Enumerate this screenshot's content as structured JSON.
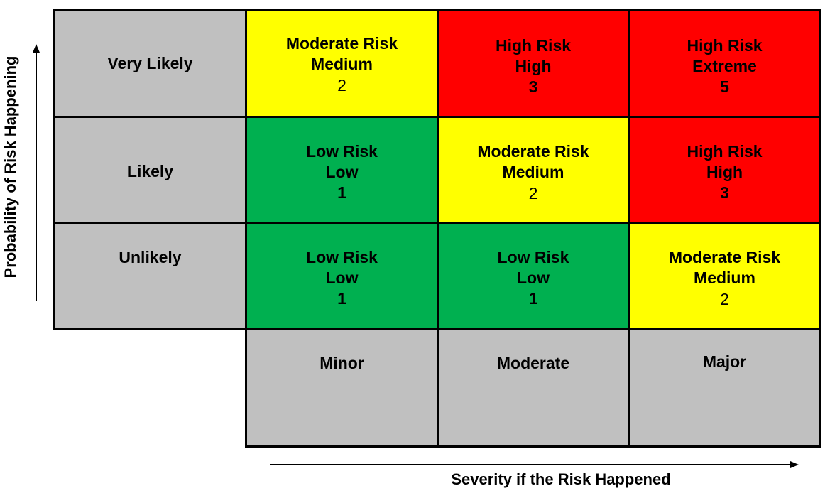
{
  "axes": {
    "y_label": "Probability of Risk Happening",
    "x_label": "Severity if the Risk Happened"
  },
  "rows": [
    {
      "label": "Very Likely"
    },
    {
      "label": "Likely"
    },
    {
      "label": "Unlikely"
    }
  ],
  "columns": [
    {
      "label": "Minor"
    },
    {
      "label": "Moderate"
    },
    {
      "label": "Major"
    }
  ],
  "matrix": [
    [
      {
        "line1": "Moderate Risk",
        "line2": "Medium",
        "score": "2",
        "color": "#ffff00"
      },
      {
        "line1": "High Risk",
        "line2": "High",
        "score": "3",
        "color": "#ff0000"
      },
      {
        "line1": "High Risk",
        "line2": "Extreme",
        "score": "5",
        "color": "#ff0000"
      }
    ],
    [
      {
        "line1": "Low Risk",
        "line2": "Low",
        "score": "1",
        "color": "#00b050"
      },
      {
        "line1": "Moderate Risk",
        "line2": "Medium",
        "score": "2",
        "color": "#ffff00"
      },
      {
        "line1": "High Risk",
        "line2": "High",
        "score": "3",
        "color": "#ff0000"
      }
    ],
    [
      {
        "line1": "Low Risk",
        "line2": "Low",
        "score": "1",
        "color": "#00b050"
      },
      {
        "line1": "Low Risk",
        "line2": "Low",
        "score": "1",
        "color": "#00b050"
      },
      {
        "line1": "Moderate Risk",
        "line2": "Medium",
        "score": "2",
        "color": "#ffff00"
      }
    ]
  ],
  "colors": {
    "low": "#00b050",
    "moderate": "#ffff00",
    "high": "#ff0000",
    "label_cell": "#c0c0c0"
  }
}
